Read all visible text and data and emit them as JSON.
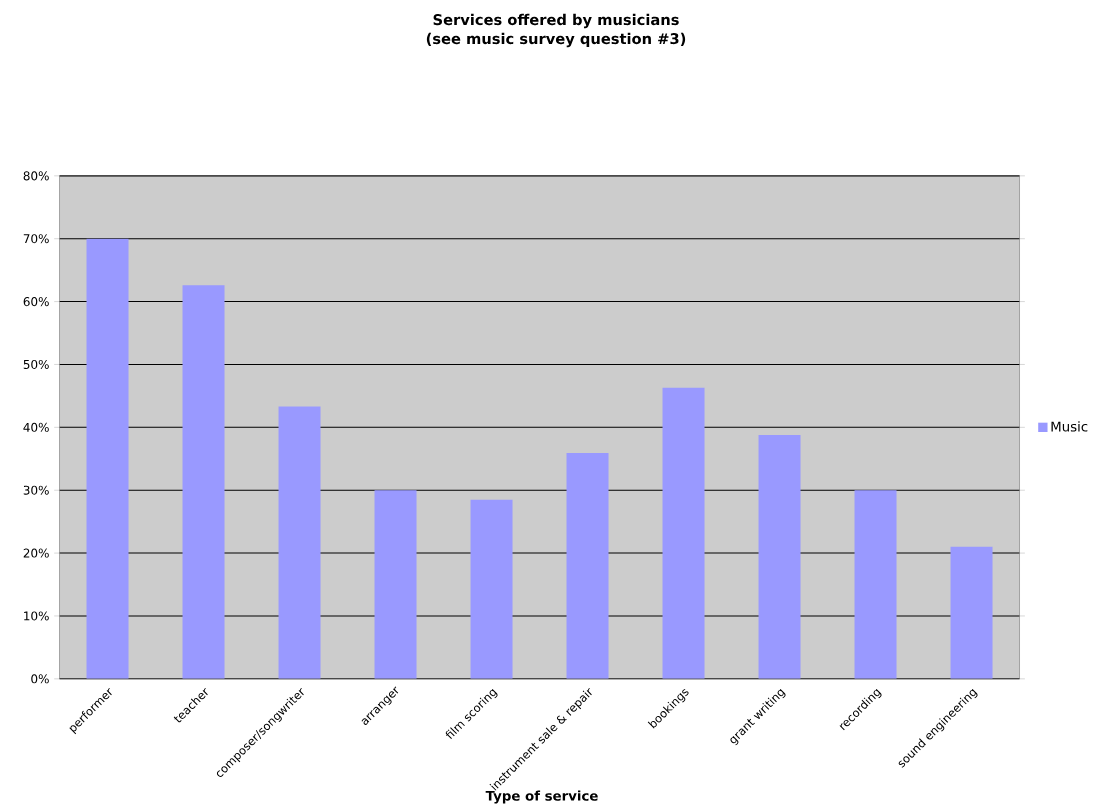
{
  "chart_data": {
    "type": "bar",
    "title": "Services offered by musicians",
    "subtitle": "(see music survey question #3)",
    "xlabel": "Type of service",
    "categories": [
      "performer",
      "teacher",
      "composer/songwriter",
      "arranger",
      "film scoring",
      "instrument sale & repair",
      "bookings",
      "grant writing",
      "recording",
      "sound engineering"
    ],
    "series": [
      {
        "name": "Music",
        "color": "#9999ff",
        "values": [
          70,
          62.6,
          43.3,
          30,
          28.5,
          35.9,
          46.3,
          38.8,
          30,
          21
        ]
      }
    ],
    "ylim": [
      0,
      80
    ],
    "yticks": [
      {
        "value": 0,
        "label": "0%"
      },
      {
        "value": 10,
        "label": "10%"
      },
      {
        "value": 20,
        "label": "20%"
      },
      {
        "value": 30,
        "label": "30%"
      },
      {
        "value": 40,
        "label": "40%"
      },
      {
        "value": 50,
        "label": "50%"
      },
      {
        "value": 60,
        "label": "60%"
      },
      {
        "value": 70,
        "label": "70%"
      },
      {
        "value": 80,
        "label": "80%"
      }
    ],
    "grid": "y",
    "legend": "right"
  }
}
